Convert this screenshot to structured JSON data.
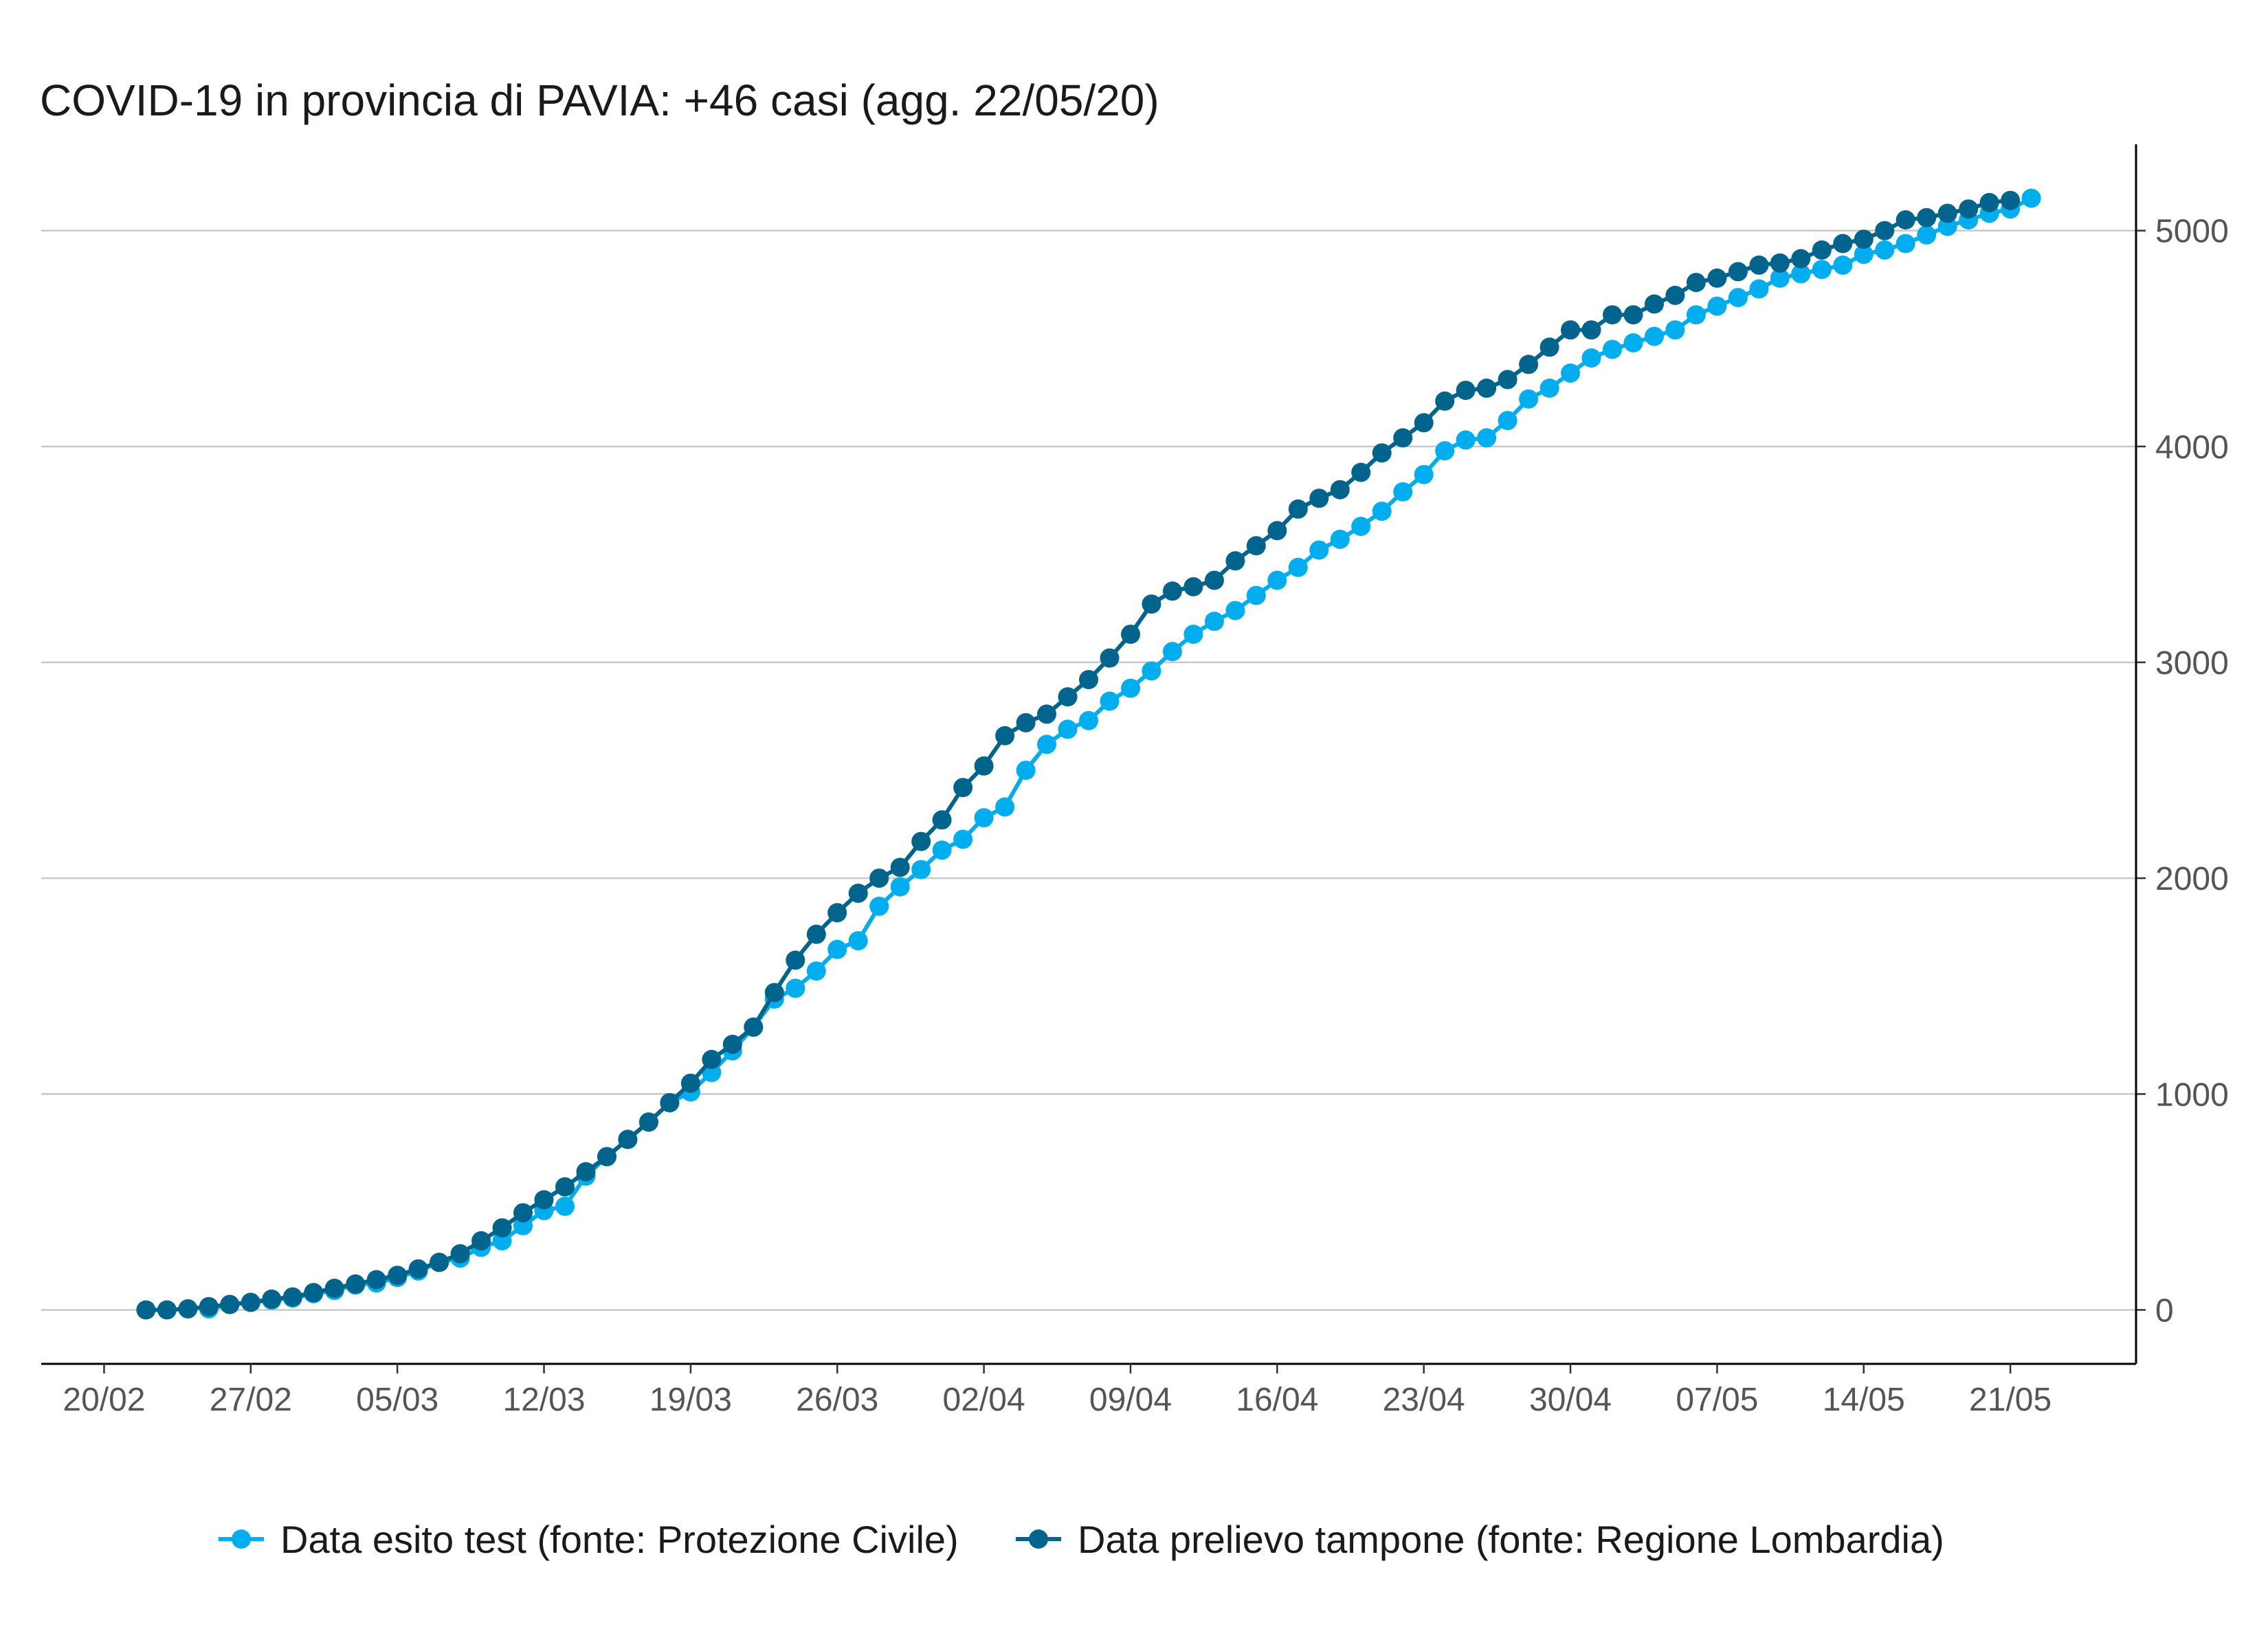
{
  "chart_data": {
    "type": "line",
    "title": "COVID-19 in provincia di PAVIA: +46 casi (agg. 22/05/20)",
    "xlabel": "",
    "ylabel": "",
    "x_start": "2020-02-20",
    "x_range": [
      "2020-02-17",
      "2020-05-27"
    ],
    "ylim": [
      -250,
      5400
    ],
    "y_axis_side": "right",
    "y_ticks": [
      0,
      1000,
      2000,
      3000,
      4000,
      5000
    ],
    "x_tick_labels": [
      "20/02",
      "27/02",
      "05/03",
      "12/03",
      "19/03",
      "26/03",
      "02/04",
      "09/04",
      "16/04",
      "23/04",
      "30/04",
      "07/05",
      "14/05",
      "21/05"
    ],
    "grid": "horizontal",
    "legend_position": "bottom",
    "series": [
      {
        "name": "Data esito test (fonte: Protezione Civile)",
        "color": "#00aeef",
        "start_date": "2020-02-25",
        "values": [
          5,
          25,
          35,
          45,
          55,
          75,
          90,
          115,
          125,
          150,
          180,
          220,
          240,
          290,
          320,
          390,
          460,
          480,
          620,
          710,
          790,
          870,
          960,
          1010,
          1100,
          1200,
          1310,
          1440,
          1490,
          1570,
          1670,
          1710,
          1870,
          1960,
          2040,
          2130,
          2180,
          2280,
          2330,
          2500,
          2620,
          2690,
          2730,
          2820,
          2880,
          2960,
          3050,
          3130,
          3190,
          3240,
          3310,
          3380,
          3440,
          3520,
          3570,
          3630,
          3700,
          3790,
          3870,
          3980,
          4030,
          4040,
          4120,
          4220,
          4270,
          4340,
          4410,
          4450,
          4480,
          4510,
          4540,
          4610,
          4650,
          4690,
          4730,
          4780,
          4800,
          4820,
          4840,
          4890,
          4910,
          4940,
          4980,
          5020,
          5050,
          5080,
          5100,
          5150
        ]
      },
      {
        "name": "Data prelievo tampone (fonte: Regione Lombardia)",
        "color": "#00648c",
        "start_date": "2020-02-22",
        "values": [
          0,
          0,
          5,
          15,
          25,
          35,
          50,
          60,
          80,
          100,
          120,
          140,
          160,
          190,
          220,
          260,
          320,
          380,
          450,
          510,
          570,
          640,
          710,
          790,
          870,
          960,
          1050,
          1160,
          1230,
          1310,
          1470,
          1620,
          1740,
          1840,
          1930,
          2000,
          2050,
          2170,
          2270,
          2420,
          2520,
          2660,
          2720,
          2760,
          2840,
          2920,
          3020,
          3130,
          3270,
          3330,
          3350,
          3380,
          3470,
          3540,
          3610,
          3710,
          3760,
          3800,
          3880,
          3970,
          4040,
          4110,
          4210,
          4260,
          4270,
          4310,
          4380,
          4460,
          4540,
          4540,
          4610,
          4610,
          4660,
          4700,
          4760,
          4780,
          4810,
          4840,
          4850,
          4870,
          4910,
          4940,
          4960,
          5000,
          5050,
          5060,
          5080,
          5100,
          5130,
          5140
        ]
      }
    ]
  }
}
